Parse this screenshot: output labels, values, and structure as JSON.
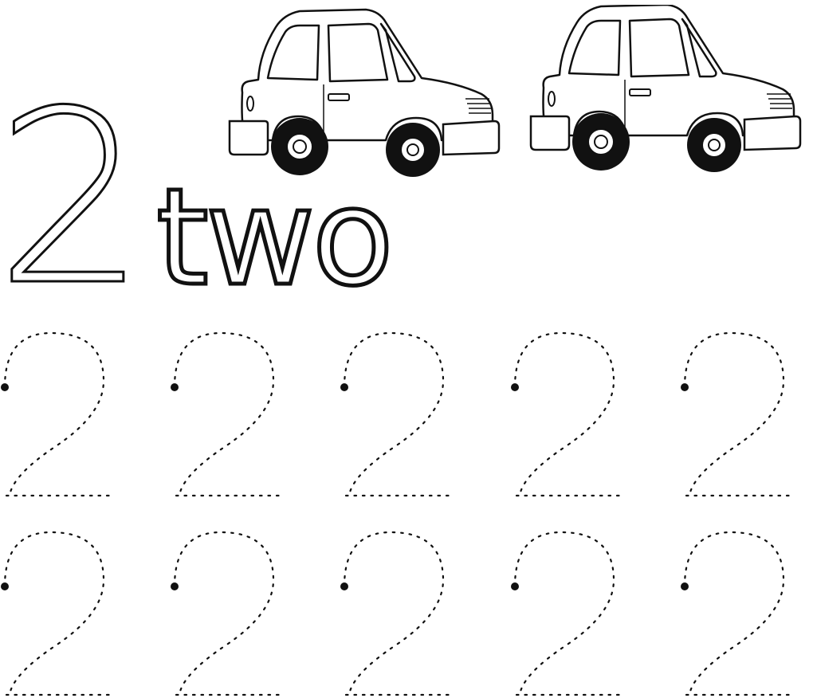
{
  "worksheet": {
    "numeral": "2",
    "word": "two",
    "picture": {
      "subject": "car-icon",
      "count": 2
    },
    "tracing": {
      "rows": 2,
      "per_row": 5,
      "glyph": "dotted-two"
    }
  },
  "colors": {
    "ink": "#111111",
    "paper": "#ffffff"
  }
}
